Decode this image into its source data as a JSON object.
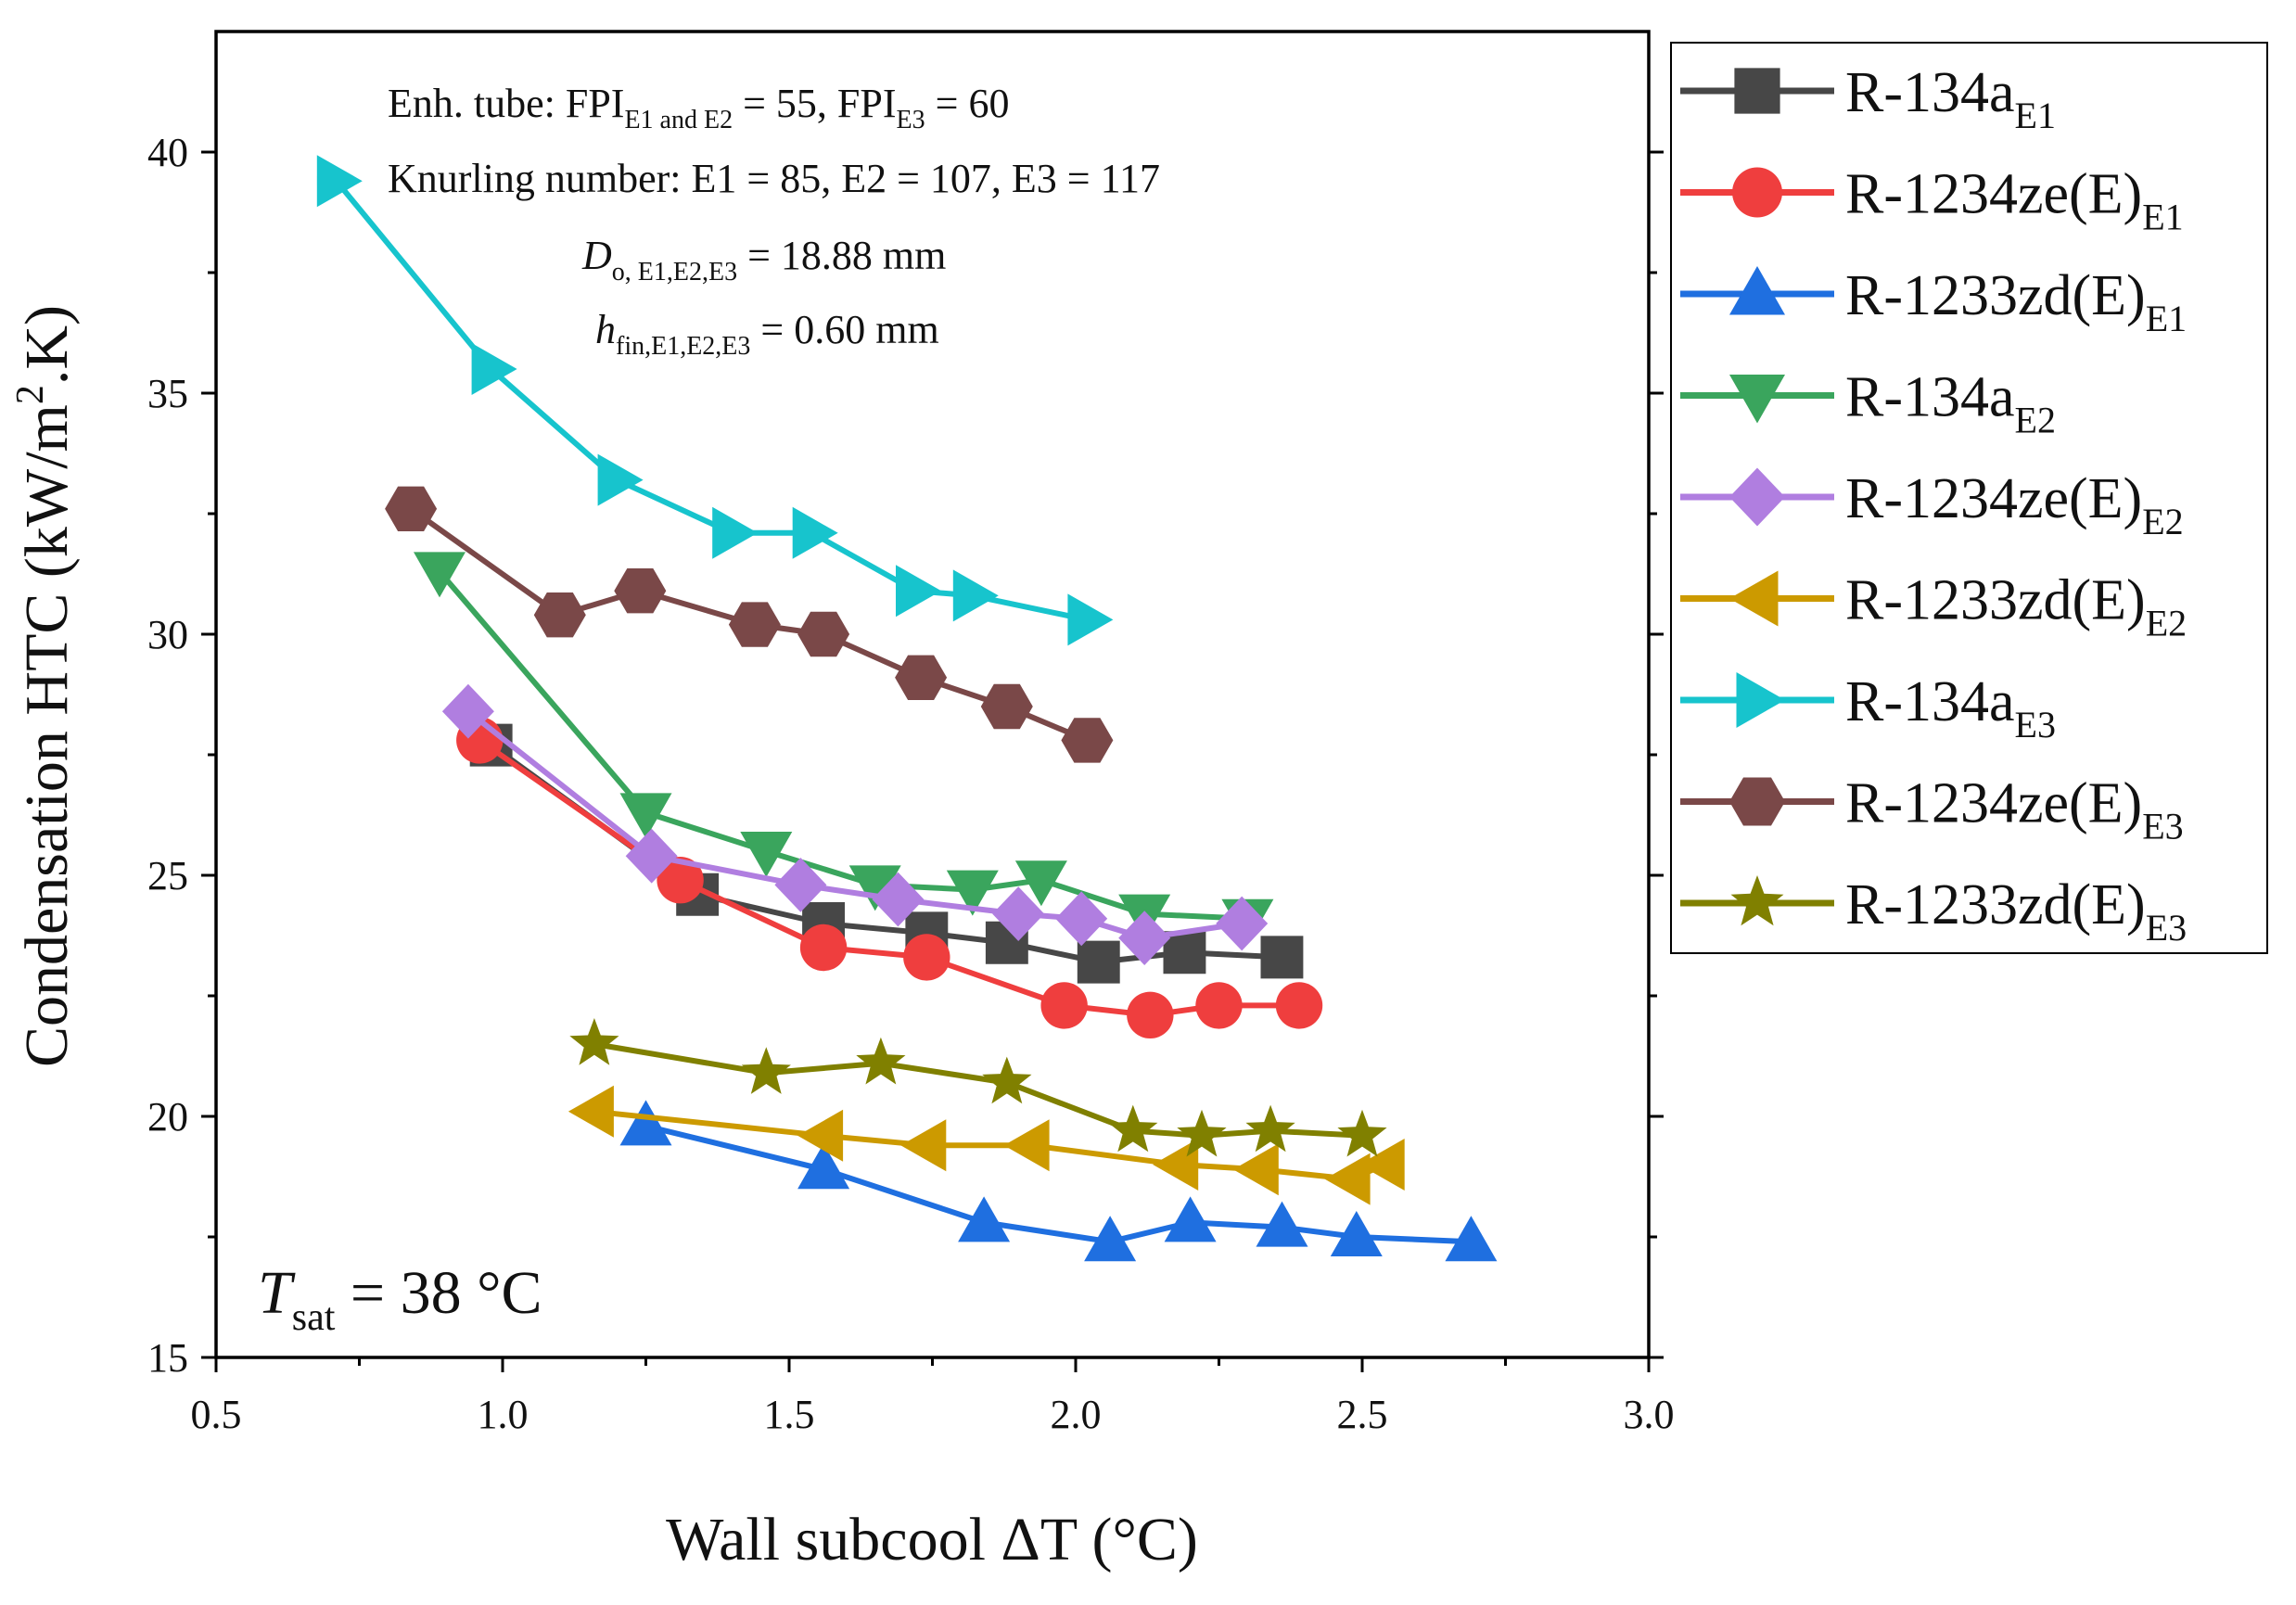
{
  "chart_data": {
    "type": "line",
    "xlabel": "Wall subcool ΔT (°C)",
    "ylabel": {
      "main": "Condensation HTC (kW/m",
      "sup": "2",
      "tail": ".K)"
    },
    "xlim": [
      0.5,
      3.0
    ],
    "ylim": [
      15,
      42.5
    ],
    "xticks": [
      "0.5",
      "1.0",
      "1.5",
      "2.0",
      "2.5",
      "3.0"
    ],
    "yticks": [
      "15",
      "20",
      "25",
      "30",
      "35",
      "40"
    ],
    "annotations": {
      "line1": {
        "a": "Enh. tube: FPI",
        "s1": "E1 and E2",
        "b": " = 55, FPI",
        "s2": "E3",
        "c": " = 60"
      },
      "line2": "Knurling number: E1 = 85, E2 = 107, E3 = 117",
      "line3": {
        "sym": "D",
        "sub": "o, E1,E2,E3",
        "val": " = 18.88 mm"
      },
      "line4": {
        "sym": "h",
        "sub": "fin,E1,E2,E3",
        "val": " = 0.60 mm"
      }
    },
    "tsat": {
      "sym": "T",
      "sub": "sat",
      "val": " = 38 °C"
    },
    "series": [
      {
        "name": "R-134a",
        "sub": "E1",
        "color": "#474747",
        "marker": "square",
        "x": [
          0.98,
          1.34,
          1.56,
          1.74,
          1.88,
          2.04,
          2.19,
          2.36
        ],
        "y": [
          27.7,
          24.6,
          24.0,
          23.8,
          23.6,
          23.2,
          23.4,
          23.3
        ]
      },
      {
        "name": "R-1234ze(E)",
        "sub": "E1",
        "color": "#ef3e3e",
        "marker": "circle",
        "x": [
          0.96,
          1.31,
          1.56,
          1.74,
          1.98,
          2.13,
          2.25,
          2.39
        ],
        "y": [
          27.8,
          24.9,
          23.5,
          23.3,
          22.3,
          22.1,
          22.3,
          22.3
        ]
      },
      {
        "name": "R-1233zd(E)",
        "sub": "E1",
        "color": "#1f6fe0",
        "marker": "triangle-up",
        "x": [
          1.25,
          1.56,
          1.84,
          2.06,
          2.2,
          2.36,
          2.49,
          2.69
        ],
        "y": [
          19.8,
          18.9,
          17.8,
          17.4,
          17.8,
          17.7,
          17.5,
          17.4
        ]
      },
      {
        "name": "R-134a",
        "sub": "E2",
        "color": "#3aa55d",
        "marker": "triangle-down",
        "x": [
          0.89,
          1.25,
          1.46,
          1.65,
          1.82,
          1.94,
          2.12,
          2.3
        ],
        "y": [
          31.3,
          26.3,
          25.5,
          24.8,
          24.7,
          24.9,
          24.2,
          24.1
        ]
      },
      {
        "name": "R-1234ze(E)",
        "sub": "E2",
        "color": "#b07ee0",
        "marker": "diamond",
        "x": [
          0.94,
          1.26,
          1.52,
          1.69,
          1.9,
          2.01,
          2.12,
          2.29
        ],
        "y": [
          28.4,
          25.4,
          24.8,
          24.5,
          24.2,
          24.1,
          23.7,
          24.0
        ]
      },
      {
        "name": "R-1233zd(E)",
        "sub": "E2",
        "color": "#cc9a00",
        "marker": "triangle-left",
        "x": [
          1.16,
          1.56,
          1.74,
          1.92,
          2.18,
          2.32,
          2.48,
          2.54
        ],
        "y": [
          20.1,
          19.6,
          19.4,
          19.4,
          19.0,
          18.9,
          18.7,
          19.0
        ]
      },
      {
        "name": "R-134a",
        "sub": "E3",
        "color": "#17c4cd",
        "marker": "triangle-right",
        "x": [
          0.71,
          0.98,
          1.2,
          1.4,
          1.54,
          1.72,
          1.82,
          2.02
        ],
        "y": [
          39.4,
          35.5,
          33.2,
          32.1,
          32.1,
          30.9,
          30.8,
          30.3
        ]
      },
      {
        "name": "R-1234ze(E)",
        "sub": "E3",
        "color": "#7a4848",
        "marker": "hexagon",
        "x": [
          0.84,
          1.1,
          1.24,
          1.44,
          1.56,
          1.73,
          1.88,
          2.02
        ],
        "y": [
          32.6,
          30.4,
          30.9,
          30.2,
          30.0,
          29.1,
          28.5,
          27.8
        ]
      },
      {
        "name": "R-1233zd(E)",
        "sub": "E3",
        "color": "#808000",
        "marker": "star",
        "x": [
          1.16,
          1.46,
          1.66,
          1.88,
          2.1,
          2.22,
          2.34,
          2.5
        ],
        "y": [
          21.5,
          20.9,
          21.1,
          20.7,
          19.7,
          19.6,
          19.7,
          19.6
        ]
      }
    ]
  }
}
